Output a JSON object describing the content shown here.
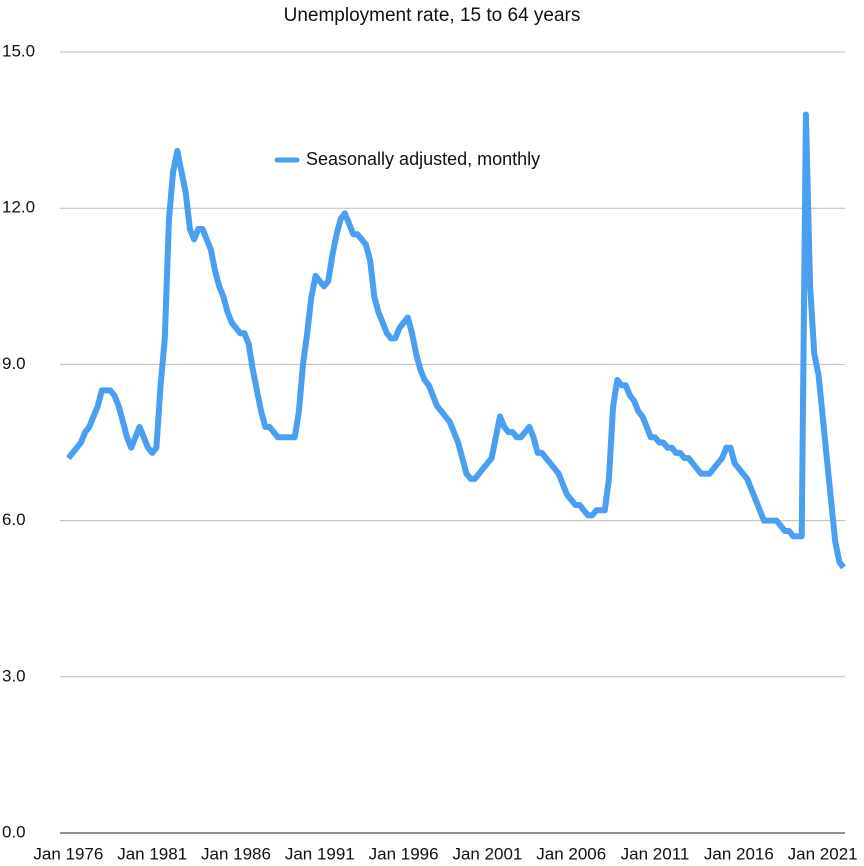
{
  "chart_data": {
    "type": "line",
    "title": "Unemployment rate, 15 to 64 years",
    "x": [
      "1976-01",
      "1976-04",
      "1976-07",
      "1976-10",
      "1977-01",
      "1977-04",
      "1977-07",
      "1977-10",
      "1978-01",
      "1978-04",
      "1978-07",
      "1978-10",
      "1979-01",
      "1979-04",
      "1979-07",
      "1979-10",
      "1980-01",
      "1980-04",
      "1980-07",
      "1980-10",
      "1981-01",
      "1981-04",
      "1981-07",
      "1981-10",
      "1982-01",
      "1982-04",
      "1982-07",
      "1982-10",
      "1983-01",
      "1983-04",
      "1983-07",
      "1983-10",
      "1984-01",
      "1984-04",
      "1984-07",
      "1984-10",
      "1985-01",
      "1985-04",
      "1985-07",
      "1985-10",
      "1986-01",
      "1986-04",
      "1986-07",
      "1986-10",
      "1987-01",
      "1987-04",
      "1987-07",
      "1987-10",
      "1988-01",
      "1988-04",
      "1988-07",
      "1988-10",
      "1989-01",
      "1989-04",
      "1989-07",
      "1989-10",
      "1990-01",
      "1990-04",
      "1990-07",
      "1990-10",
      "1991-01",
      "1991-04",
      "1991-07",
      "1991-10",
      "1992-01",
      "1992-04",
      "1992-07",
      "1992-10",
      "1993-01",
      "1993-04",
      "1993-07",
      "1993-10",
      "1994-01",
      "1994-04",
      "1994-07",
      "1994-10",
      "1995-01",
      "1995-04",
      "1995-07",
      "1995-10",
      "1996-01",
      "1996-04",
      "1996-07",
      "1996-10",
      "1997-01",
      "1997-04",
      "1997-07",
      "1997-10",
      "1998-01",
      "1998-04",
      "1998-07",
      "1998-10",
      "1999-01",
      "1999-04",
      "1999-07",
      "1999-10",
      "2000-01",
      "2000-04",
      "2000-07",
      "2000-10",
      "2001-01",
      "2001-04",
      "2001-07",
      "2001-10",
      "2002-01",
      "2002-04",
      "2002-07",
      "2002-10",
      "2003-01",
      "2003-04",
      "2003-07",
      "2003-10",
      "2004-01",
      "2004-04",
      "2004-07",
      "2004-10",
      "2005-01",
      "2005-04",
      "2005-07",
      "2005-10",
      "2006-01",
      "2006-04",
      "2006-07",
      "2006-10",
      "2007-01",
      "2007-04",
      "2007-07",
      "2007-10",
      "2008-01",
      "2008-04",
      "2008-07",
      "2008-10",
      "2009-01",
      "2009-04",
      "2009-07",
      "2009-10",
      "2010-01",
      "2010-04",
      "2010-07",
      "2010-10",
      "2011-01",
      "2011-04",
      "2011-07",
      "2011-10",
      "2012-01",
      "2012-04",
      "2012-07",
      "2012-10",
      "2013-01",
      "2013-04",
      "2013-07",
      "2013-10",
      "2014-01",
      "2014-04",
      "2014-07",
      "2014-10",
      "2015-01",
      "2015-04",
      "2015-07",
      "2015-10",
      "2016-01",
      "2016-04",
      "2016-07",
      "2016-10",
      "2017-01",
      "2017-04",
      "2017-07",
      "2017-10",
      "2018-01",
      "2018-04",
      "2018-07",
      "2018-10",
      "2019-01",
      "2019-04",
      "2019-07",
      "2019-10",
      "2020-01",
      "2020-04",
      "2020-07",
      "2020-10",
      "2021-01",
      "2021-04",
      "2021-07",
      "2021-10",
      "2022-01",
      "2022-04"
    ],
    "series": [
      {
        "name": "Seasonally adjusted, monthly",
        "color": "#4a9ff0",
        "values": [
          7.2,
          7.3,
          7.4,
          7.5,
          7.7,
          7.8,
          8.0,
          8.2,
          8.5,
          8.5,
          8.5,
          8.4,
          8.2,
          7.9,
          7.6,
          7.4,
          7.6,
          7.8,
          7.6,
          7.4,
          7.3,
          7.4,
          8.6,
          9.5,
          11.8,
          12.7,
          13.1,
          12.7,
          12.3,
          11.6,
          11.4,
          11.6,
          11.6,
          11.4,
          11.2,
          10.8,
          10.5,
          10.3,
          10.0,
          9.8,
          9.7,
          9.6,
          9.6,
          9.4,
          8.9,
          8.5,
          8.1,
          7.8,
          7.8,
          7.7,
          7.6,
          7.6,
          7.6,
          7.6,
          7.6,
          8.1,
          9.0,
          9.6,
          10.3,
          10.7,
          10.6,
          10.5,
          10.6,
          11.1,
          11.5,
          11.8,
          11.9,
          11.7,
          11.5,
          11.5,
          11.4,
          11.3,
          11.0,
          10.3,
          10.0,
          9.8,
          9.6,
          9.5,
          9.5,
          9.7,
          9.8,
          9.9,
          9.6,
          9.2,
          8.9,
          8.7,
          8.6,
          8.4,
          8.2,
          8.1,
          8.0,
          7.9,
          7.7,
          7.5,
          7.2,
          6.9,
          6.8,
          6.8,
          6.9,
          7.0,
          7.1,
          7.2,
          7.6,
          8.0,
          7.8,
          7.7,
          7.7,
          7.6,
          7.6,
          7.7,
          7.8,
          7.6,
          7.3,
          7.3,
          7.2,
          7.1,
          7.0,
          6.9,
          6.7,
          6.5,
          6.4,
          6.3,
          6.3,
          6.2,
          6.1,
          6.1,
          6.2,
          6.2,
          6.2,
          6.8,
          8.2,
          8.7,
          8.6,
          8.6,
          8.4,
          8.3,
          8.1,
          8.0,
          7.8,
          7.6,
          7.6,
          7.5,
          7.5,
          7.4,
          7.4,
          7.3,
          7.3,
          7.2,
          7.2,
          7.1,
          7.0,
          6.9,
          6.9,
          6.9,
          7.0,
          7.1,
          7.2,
          7.4,
          7.4,
          7.1,
          7.0,
          6.9,
          6.8,
          6.6,
          6.4,
          6.2,
          6.0,
          6.0,
          6.0,
          6.0,
          5.9,
          5.8,
          5.8,
          5.7,
          5.7,
          5.7,
          13.8,
          10.5,
          9.2,
          8.8,
          8.0,
          7.2,
          6.4,
          5.6,
          5.2,
          5.1
        ]
      }
    ],
    "xlim": [
      "1975-07",
      "2022-05"
    ],
    "xticks": [
      {
        "value": "1976-01",
        "label": "Jan 1976"
      },
      {
        "value": "1981-01",
        "label": "Jan 1981"
      },
      {
        "value": "1986-01",
        "label": "Jan 1986"
      },
      {
        "value": "1991-01",
        "label": "Jan 1991"
      },
      {
        "value": "1996-01",
        "label": "Jan 1996"
      },
      {
        "value": "2001-01",
        "label": "Jan 2001"
      },
      {
        "value": "2006-01",
        "label": "Jan 2006"
      },
      {
        "value": "2011-01",
        "label": "Jan 2011"
      },
      {
        "value": "2016-01",
        "label": "Jan 2016"
      },
      {
        "value": "2021-01",
        "label": "Jan 2021"
      }
    ],
    "ylim": [
      0,
      15
    ],
    "yticks": [
      {
        "value": 0,
        "label": "0.0"
      },
      {
        "value": 3,
        "label": "3.0"
      },
      {
        "value": 6,
        "label": "6.0"
      },
      {
        "value": 9,
        "label": "9.0"
      },
      {
        "value": 12,
        "label": "12.0"
      },
      {
        "value": 15,
        "label": "15.0"
      }
    ],
    "grid": true,
    "legend": "top"
  }
}
